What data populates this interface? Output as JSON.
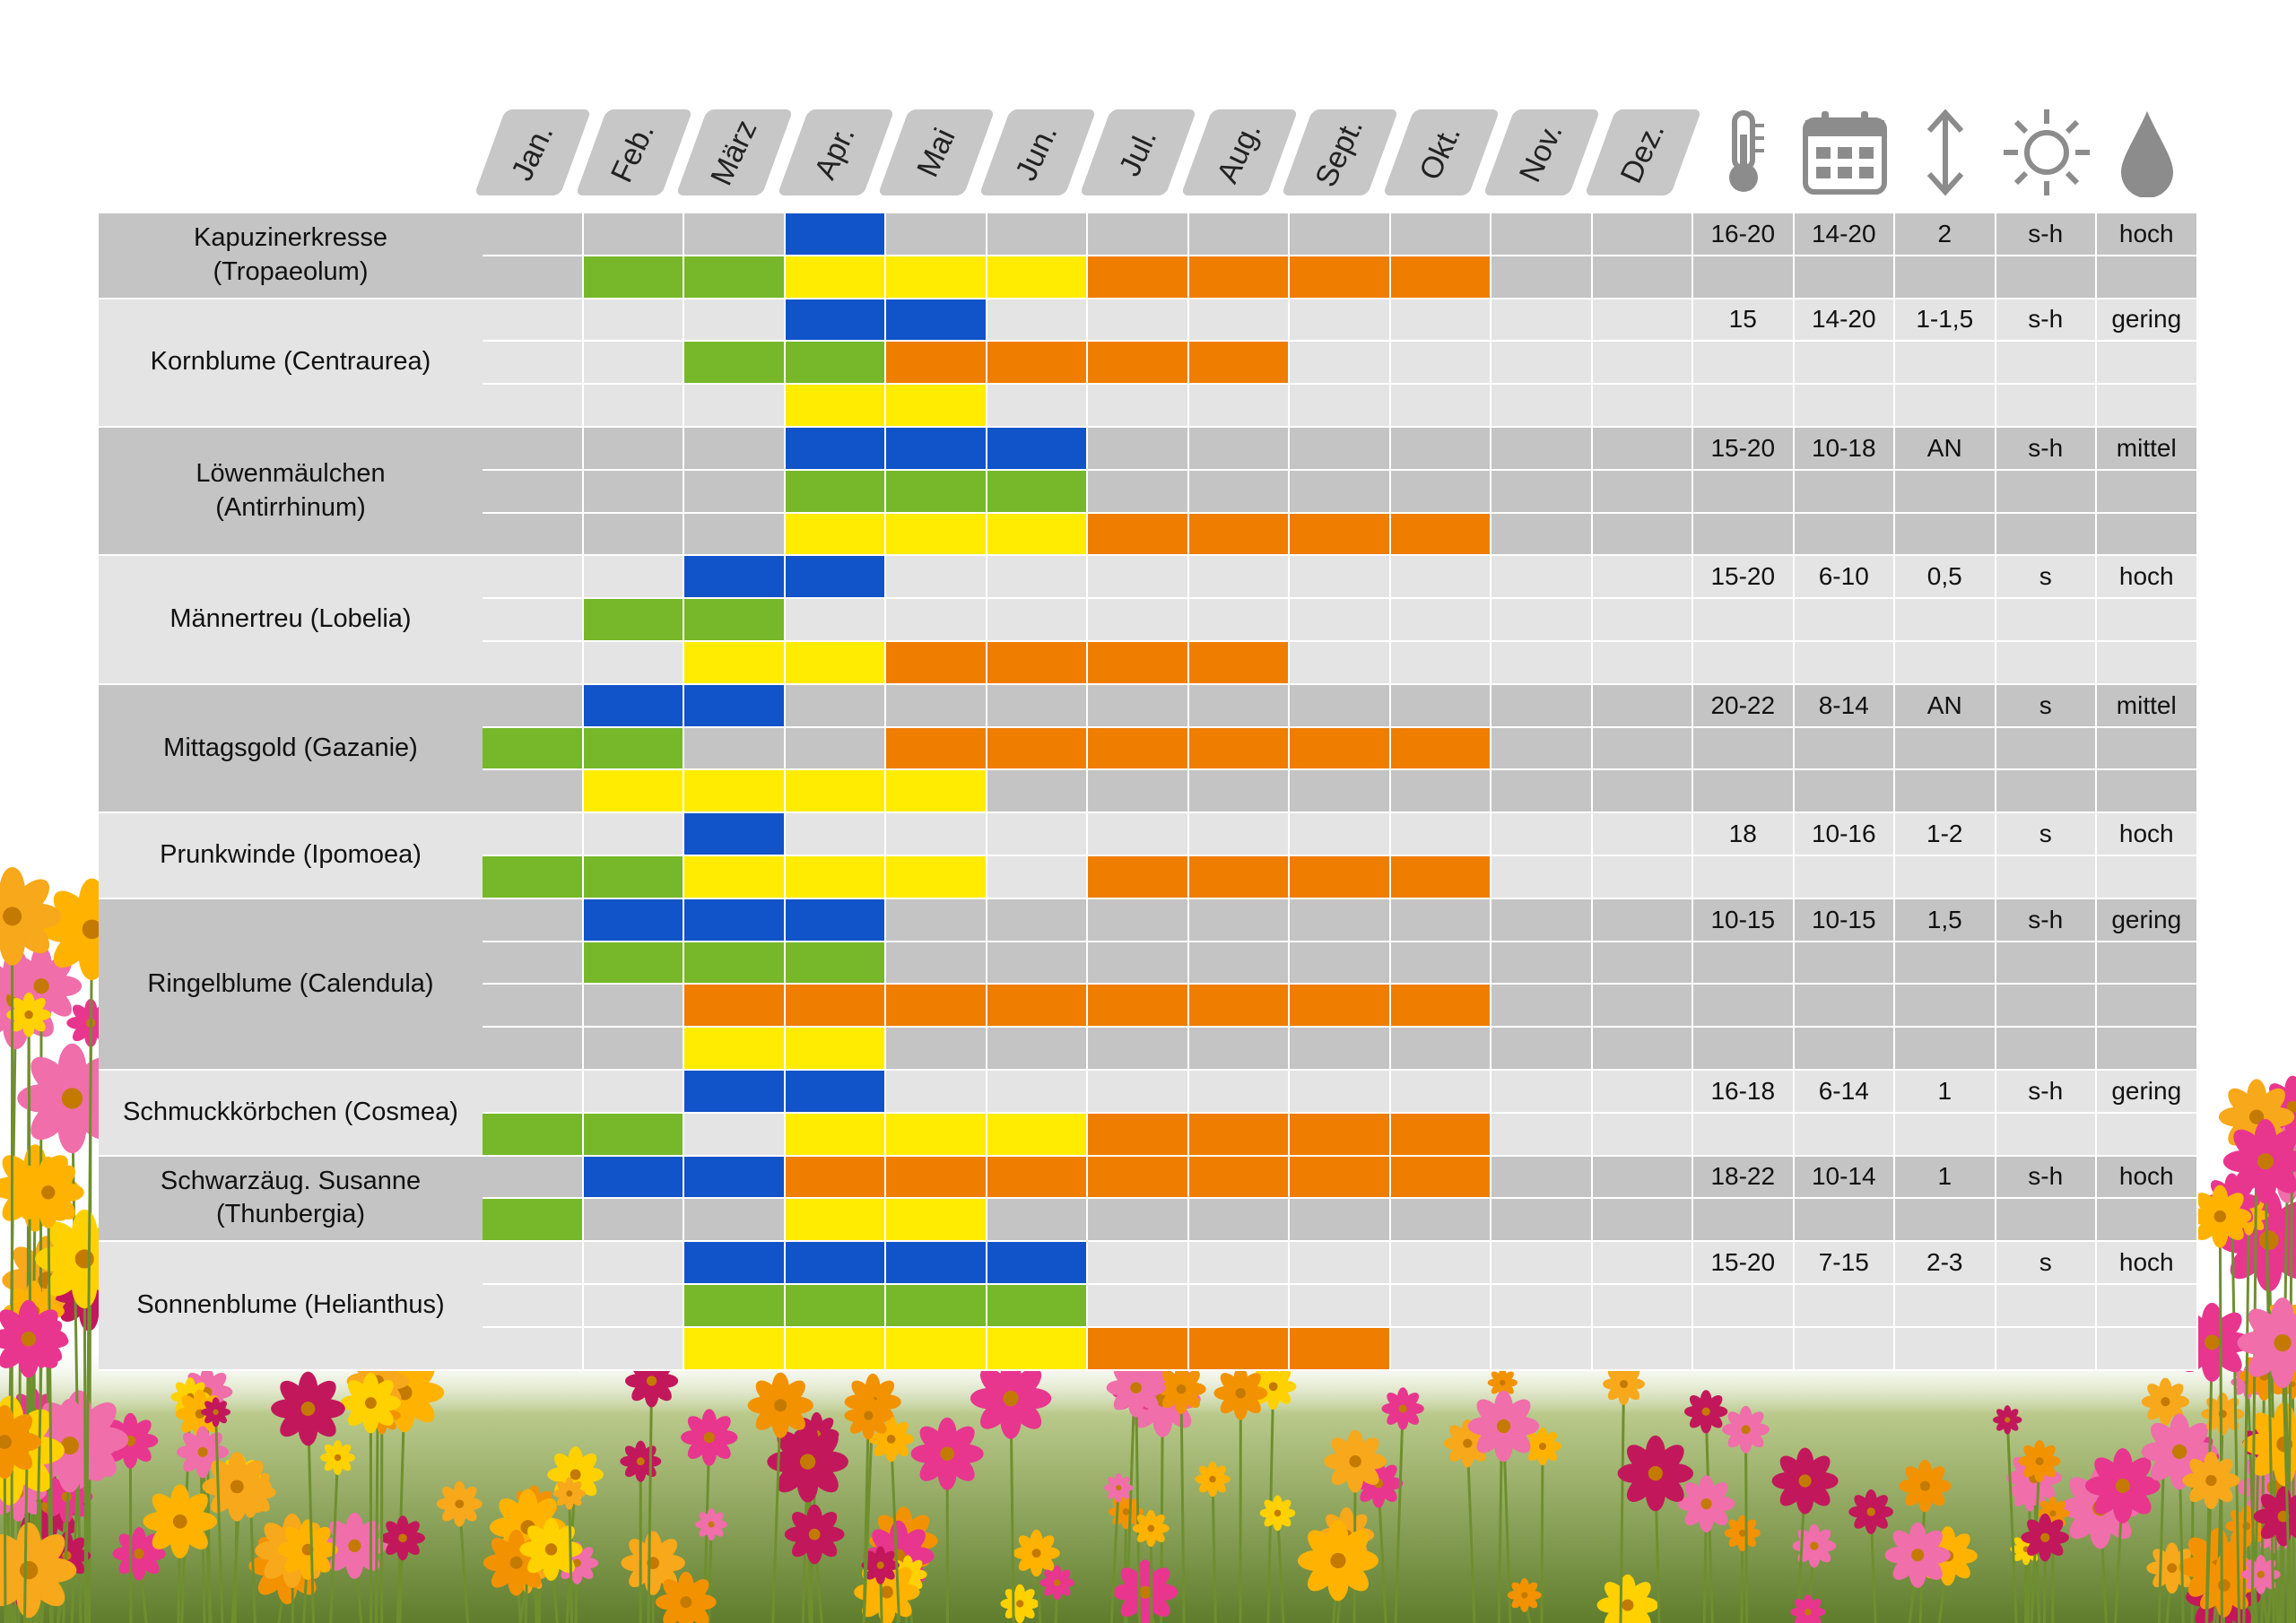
{
  "months": [
    "Jan.",
    "Feb.",
    "März",
    "Apr.",
    "Mai",
    "Jun.",
    "Jul.",
    "Aug.",
    "Sept.",
    "Okt.",
    "Nov.",
    "Dez."
  ],
  "icons": [
    "thermometer-icon",
    "calendar-icon",
    "height-arrow-icon",
    "sun-icon",
    "water-drop-icon"
  ],
  "colors": {
    "blue": "#1153c8",
    "green": "#76b82a",
    "yellow": "#ffec00",
    "orange": "#ef7d00",
    "bg_dark": "#c4c4c4",
    "bg_light": "#e4e4e4"
  },
  "plants": [
    {
      "name": "Kapuzinerkresse\n(Tropaeolum)",
      "values": [
        "16-20",
        "14-20",
        "2",
        "s-h",
        "hoch"
      ],
      "rows": [
        [
          [
            4,
            4,
            "blue"
          ]
        ],
        [
          [
            2,
            3,
            "green"
          ],
          [
            4,
            6,
            "yellow"
          ],
          [
            7,
            10,
            "orange"
          ]
        ]
      ]
    },
    {
      "name": "Kornblume (Centraurea)",
      "values": [
        "15",
        "14-20",
        "1-1,5",
        "s-h",
        "gering"
      ],
      "rows": [
        [
          [
            4,
            5,
            "blue"
          ]
        ],
        [
          [
            3,
            4,
            "green"
          ],
          [
            5,
            8,
            "orange"
          ]
        ],
        [
          [
            4,
            5,
            "yellow"
          ]
        ]
      ]
    },
    {
      "name": "Löwenmäulchen\n(Antirrhinum)",
      "values": [
        "15-20",
        "10-18",
        "AN",
        "s-h",
        "mittel"
      ],
      "rows": [
        [
          [
            4,
            6,
            "blue"
          ]
        ],
        [
          [
            4,
            6,
            "green"
          ]
        ],
        [
          [
            4,
            6,
            "yellow"
          ],
          [
            7,
            10,
            "orange"
          ]
        ]
      ]
    },
    {
      "name": "Männertreu (Lobelia)",
      "values": [
        "15-20",
        "6-10",
        "0,5",
        "s",
        "hoch"
      ],
      "rows": [
        [
          [
            3,
            4,
            "blue"
          ]
        ],
        [
          [
            2,
            3,
            "green"
          ]
        ],
        [
          [
            3,
            4,
            "yellow"
          ],
          [
            5,
            8,
            "orange"
          ]
        ]
      ]
    },
    {
      "name": "Mittagsgold (Gazanie)",
      "values": [
        "20-22",
        "8-14",
        "AN",
        "s",
        "mittel"
      ],
      "rows": [
        [
          [
            2,
            3,
            "blue"
          ]
        ],
        [
          [
            1,
            2,
            "green"
          ],
          [
            5,
            10,
            "orange"
          ]
        ],
        [
          [
            2,
            5,
            "yellow"
          ]
        ]
      ]
    },
    {
      "name": "Prunkwinde (Ipomoea)",
      "values": [
        "18",
        "10-16",
        "1-2",
        "s",
        "hoch"
      ],
      "rows": [
        [
          [
            3,
            3,
            "blue"
          ]
        ],
        [
          [
            1,
            2,
            "green"
          ],
          [
            3,
            5,
            "yellow"
          ],
          [
            7,
            10,
            "orange"
          ]
        ]
      ]
    },
    {
      "name": "Ringelblume (Calendula)",
      "values": [
        "10-15",
        "10-15",
        "1,5",
        "s-h",
        "gering"
      ],
      "rows": [
        [
          [
            2,
            4,
            "blue"
          ]
        ],
        [
          [
            2,
            4,
            "green"
          ]
        ],
        [
          [
            3,
            10,
            "orange"
          ]
        ],
        [
          [
            3,
            4,
            "yellow"
          ]
        ]
      ]
    },
    {
      "name": "Schmuckkörbchen (Cosmea)",
      "values": [
        "16-18",
        "6-14",
        "1",
        "s-h",
        "gering"
      ],
      "rows": [
        [
          [
            3,
            4,
            "blue"
          ]
        ],
        [
          [
            1,
            2,
            "green"
          ],
          [
            4,
            6,
            "yellow"
          ],
          [
            7,
            10,
            "orange"
          ]
        ]
      ]
    },
    {
      "name": "Schwarzäug. Susanne\n(Thunbergia)",
      "values": [
        "18-22",
        "10-14",
        "1",
        "s-h",
        "hoch"
      ],
      "rows": [
        [
          [
            2,
            3,
            "blue"
          ],
          [
            4,
            10,
            "orange"
          ]
        ],
        [
          [
            1,
            1,
            "green"
          ],
          [
            4,
            5,
            "yellow"
          ]
        ]
      ]
    },
    {
      "name": "Sonnenblume (Helianthus)",
      "values": [
        "15-20",
        "7-15",
        "2-3",
        "s",
        "hoch"
      ],
      "rows": [
        [
          [
            3,
            6,
            "blue"
          ]
        ],
        [
          [
            3,
            6,
            "green"
          ]
        ],
        [
          [
            3,
            6,
            "yellow"
          ],
          [
            7,
            9,
            "orange"
          ]
        ]
      ]
    }
  ]
}
